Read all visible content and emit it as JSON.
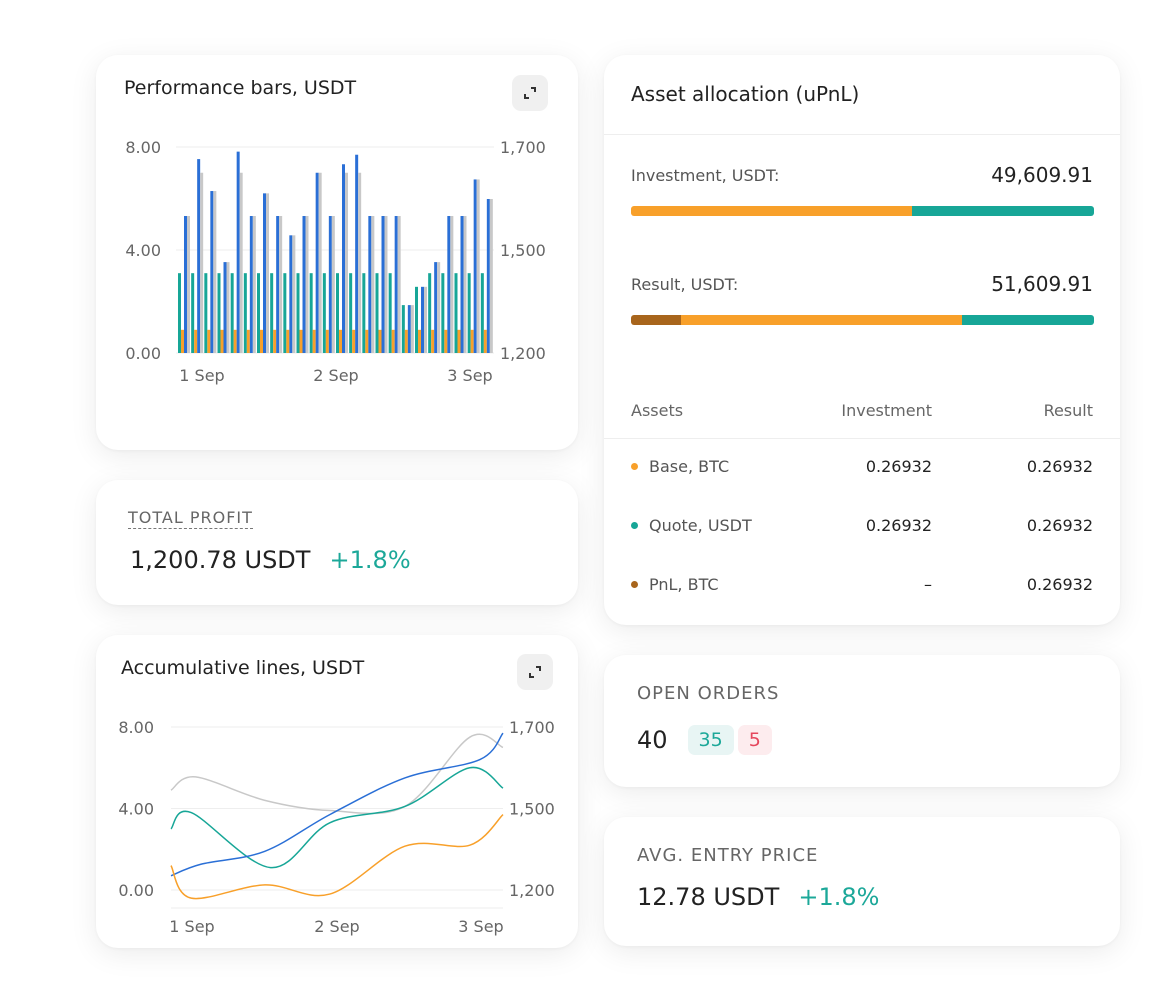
{
  "colors": {
    "blue": "#2a6fd6",
    "gray": "#c8c8c8",
    "teal": "#17a697",
    "orange": "#f8a02a",
    "brown": "#a8651c",
    "green": "#1ca899",
    "red": "#e5475d"
  },
  "performance": {
    "title": "Performance bars, USDT",
    "expand_icon": "expand-icon"
  },
  "total_profit": {
    "label": "TOTAL PROFIT",
    "value": "1,200.78 USDT",
    "change": "+1.8%"
  },
  "accumulative": {
    "title": "Accumulative lines, USDT",
    "expand_icon": "expand-icon"
  },
  "asset_allocation": {
    "title": "Asset allocation (uPnL)",
    "investment": {
      "label": "Investment, USDT:",
      "value": "49,609.91",
      "segments": [
        {
          "color": "orange",
          "pct": 60.7
        },
        {
          "color": "teal",
          "pct": 39.3
        }
      ]
    },
    "result": {
      "label": "Result, USDT:",
      "value": "51,609.91",
      "segments": [
        {
          "color": "brown",
          "pct": 10.8
        },
        {
          "color": "orange",
          "pct": 60.7
        },
        {
          "color": "teal",
          "pct": 28.5
        }
      ]
    },
    "columns": [
      "Assets",
      "Investment",
      "Result"
    ],
    "rows": [
      {
        "asset": "Base, BTC",
        "color": "orange",
        "investment": "0.26932",
        "result": "0.26932"
      },
      {
        "asset": "Quote, USDT",
        "color": "teal",
        "investment": "0.26932",
        "result": "0.26932"
      },
      {
        "asset": "PnL, BTC",
        "color": "brown",
        "investment": "–",
        "result": "0.26932"
      }
    ]
  },
  "open_orders": {
    "label": "OPEN ORDERS",
    "total": "40",
    "buy": "35",
    "sell": "5"
  },
  "avg_entry": {
    "label": "AVG. ENTRY PRICE",
    "value": "12.78 USDT",
    "change": "+1.8%"
  },
  "chart_data": [
    {
      "type": "bar",
      "title": "Performance bars, USDT",
      "left_ticks": [
        "8.00",
        "4.00",
        "0.00"
      ],
      "right_ticks": [
        "1,700",
        "1,500",
        "1,200"
      ],
      "x_ticks": [
        "1 Sep",
        "2 Sep",
        "3 Sep"
      ],
      "ylim": [
        0,
        8
      ],
      "y2lim": [
        1200,
        1700
      ],
      "series": [
        {
          "name": "teal",
          "color": "teal",
          "values": [
            3.1,
            3.1,
            3.1,
            3.1,
            3.1,
            3.1,
            3.1,
            3.1,
            3.1,
            3.1,
            3.1,
            3.1,
            3.1,
            3.1,
            3.1,
            3.1,
            3.1,
            1.86,
            2.57,
            3.1,
            3.1,
            3.1,
            3.1,
            3.1
          ]
        },
        {
          "name": "orange",
          "color": "orange",
          "values": [
            0.9,
            0.9,
            0.9,
            0.9,
            0.9,
            0.9,
            0.9,
            0.9,
            0.9,
            0.9,
            0.9,
            0.9,
            0.9,
            0.9,
            0.9,
            0.9,
            0.9,
            0.9,
            0.9,
            0.9,
            0.9,
            0.9,
            0.9,
            0.9
          ]
        },
        {
          "name": "blue",
          "color": "blue",
          "values": [
            5.32,
            7.53,
            6.29,
            3.53,
            7.82,
            5.32,
            6.2,
            5.32,
            4.57,
            5.32,
            7.0,
            5.32,
            7.33,
            7.7,
            5.32,
            5.32,
            5.32,
            1.86,
            2.57,
            3.53,
            5.32,
            5.32,
            6.74,
            5.98
          ]
        },
        {
          "name": "gray",
          "color": "gray",
          "values": [
            5.32,
            7.0,
            6.29,
            3.53,
            7.0,
            5.32,
            6.2,
            5.32,
            4.57,
            5.32,
            7.0,
            5.32,
            7.0,
            7.0,
            5.32,
            5.32,
            5.32,
            1.86,
            2.57,
            3.53,
            5.32,
            5.32,
            6.74,
            5.98
          ]
        }
      ]
    },
    {
      "type": "line",
      "title": "Accumulative lines, USDT",
      "left_ticks": [
        "8.00",
        "4.00",
        "0.00"
      ],
      "right_ticks": [
        "1,700",
        "1,500",
        "1,200"
      ],
      "x_ticks": [
        "1 Sep",
        "2 Sep",
        "3 Sep"
      ],
      "xlim": [
        0.85,
        3.15
      ],
      "ylim": [
        0,
        8
      ],
      "series": [
        {
          "name": "gray",
          "color": "gray",
          "x": [
            0.85,
            1.02,
            1.5,
            1.95,
            2.47,
            2.92,
            3.15
          ],
          "y": [
            4.9,
            5.55,
            4.4,
            3.9,
            4.1,
            7.5,
            7.0
          ]
        },
        {
          "name": "teal",
          "color": "teal",
          "x": [
            0.85,
            0.99,
            1.54,
            1.95,
            2.47,
            2.92,
            3.15
          ],
          "y": [
            3.0,
            3.8,
            1.1,
            3.3,
            4.1,
            6.0,
            5.0
          ]
        },
        {
          "name": "blue",
          "color": "blue",
          "x": [
            0.85,
            1.06,
            1.5,
            1.95,
            2.47,
            2.99,
            3.15
          ],
          "y": [
            0.7,
            1.27,
            1.9,
            3.7,
            5.5,
            6.4,
            7.7
          ]
        },
        {
          "name": "orange",
          "color": "orange",
          "x": [
            0.85,
            0.99,
            1.5,
            1.95,
            2.47,
            2.92,
            3.15
          ],
          "y": [
            1.2,
            -0.4,
            0.25,
            -0.2,
            2.15,
            2.2,
            3.7
          ]
        }
      ]
    }
  ]
}
